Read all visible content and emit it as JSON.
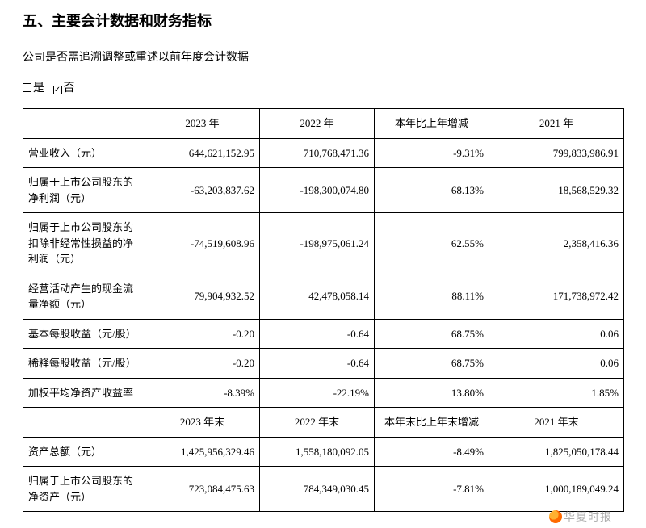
{
  "heading": "五、主要会计数据和财务指标",
  "subtext": "公司是否需追溯调整或重述以前年度会计数据",
  "checkbox_yes": "是",
  "checkbox_no": "否",
  "table1": {
    "headers": [
      "",
      "2023 年",
      "2022 年",
      "本年比上年增减",
      "2021 年"
    ],
    "rows": [
      {
        "label": "营业收入（元）",
        "y2023": "644,621,152.95",
        "y2022": "710,768,471.36",
        "chg": "-9.31%",
        "y2021": "799,833,986.91"
      },
      {
        "label": "归属于上市公司股东的净利润（元）",
        "y2023": "-63,203,837.62",
        "y2022": "-198,300,074.80",
        "chg": "68.13%",
        "y2021": "18,568,529.32"
      },
      {
        "label": "归属于上市公司股东的扣除非经常性损益的净利润（元）",
        "y2023": "-74,519,608.96",
        "y2022": "-198,975,061.24",
        "chg": "62.55%",
        "y2021": "2,358,416.36"
      },
      {
        "label": "经营活动产生的现金流量净额（元）",
        "y2023": "79,904,932.52",
        "y2022": "42,478,058.14",
        "chg": "88.11%",
        "y2021": "171,738,972.42"
      },
      {
        "label": "基本每股收益（元/股）",
        "y2023": "-0.20",
        "y2022": "-0.64",
        "chg": "68.75%",
        "y2021": "0.06"
      },
      {
        "label": "稀释每股收益（元/股）",
        "y2023": "-0.20",
        "y2022": "-0.64",
        "chg": "68.75%",
        "y2021": "0.06"
      },
      {
        "label": "加权平均净资产收益率",
        "y2023": "-8.39%",
        "y2022": "-22.19%",
        "chg": "13.80%",
        "y2021": "1.85%"
      }
    ]
  },
  "table2": {
    "headers": [
      "",
      "2023 年末",
      "2022 年末",
      "本年末比上年末增减",
      "2021 年末"
    ],
    "rows": [
      {
        "label": "资产总额（元）",
        "y2023": "1,425,956,329.46",
        "y2022": "1,558,180,092.05",
        "chg": "-8.49%",
        "y2021": "1,825,050,178.44"
      },
      {
        "label": "归属于上市公司股东的净资产（元）",
        "y2023": "723,084,475.63",
        "y2022": "784,349,030.45",
        "chg": "-7.81%",
        "y2021": "1,000,189,049.24"
      }
    ]
  },
  "watermark": "华夏时报",
  "colors": {
    "border": "#000000",
    "text": "#000000",
    "background": "#ffffff"
  }
}
